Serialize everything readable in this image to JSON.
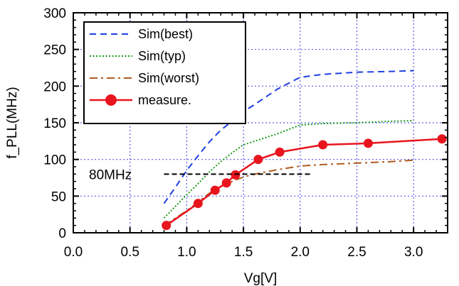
{
  "chart_data": {
    "type": "line",
    "xlabel": "Vg[V]",
    "ylabel": "f_PLL(MHz)",
    "xlim": [
      0.0,
      3.3
    ],
    "ylim": [
      0,
      300
    ],
    "xticks": [
      "0.0",
      "0.5",
      "1.0",
      "1.5",
      "2.0",
      "2.5",
      "3.0"
    ],
    "xtick_values": [
      0.0,
      0.5,
      1.0,
      1.5,
      2.0,
      2.5,
      3.0
    ],
    "yticks": [
      "0",
      "50",
      "100",
      "150",
      "200",
      "250",
      "300"
    ],
    "ytick_values": [
      0,
      50,
      100,
      150,
      200,
      250,
      300
    ],
    "grid": true,
    "legend_position": "top-left",
    "series": [
      {
        "name": "Sim(best)",
        "style": "dashed",
        "color": "#1f3fe0",
        "x": [
          0.8,
          0.9,
          1.0,
          1.1,
          1.2,
          1.3,
          1.4,
          1.5,
          1.6,
          1.8,
          2.0,
          2.2,
          2.5,
          2.8,
          3.0
        ],
        "y": [
          40,
          62,
          85,
          105,
          124,
          140,
          152,
          165,
          175,
          196,
          212,
          216,
          219,
          220,
          221
        ]
      },
      {
        "name": "Sim(typ)",
        "style": "dotted",
        "color": "#1a9a1a",
        "x": [
          0.8,
          0.9,
          1.0,
          1.1,
          1.2,
          1.3,
          1.4,
          1.5,
          1.6,
          1.8,
          2.0,
          2.2,
          2.5,
          2.8,
          3.0
        ],
        "y": [
          20,
          36,
          52,
          67,
          83,
          97,
          109,
          120,
          125,
          135,
          147,
          149,
          150,
          152,
          153
        ]
      },
      {
        "name": "Sim(worst)",
        "style": "dashdot",
        "color": "#b05a1e",
        "x": [
          0.8,
          0.9,
          1.0,
          1.1,
          1.2,
          1.3,
          1.4,
          1.5,
          1.6,
          1.8,
          2.0,
          2.2,
          2.5,
          2.8,
          3.0
        ],
        "y": [
          10,
          20,
          30,
          42,
          54,
          63,
          70,
          76,
          80,
          86,
          91,
          93,
          95,
          97,
          99
        ]
      },
      {
        "name": "measure.",
        "style": "solid-marker",
        "color": "#e8141e",
        "x": [
          0.82,
          1.1,
          1.25,
          1.35,
          1.43,
          1.63,
          1.82,
          2.2,
          2.6,
          3.25
        ],
        "y": [
          10,
          40,
          58,
          68,
          79,
          100,
          110,
          120,
          122,
          128
        ]
      }
    ],
    "annotations": [
      {
        "text": "80MHz",
        "line_x": [
          0.8,
          2.1
        ],
        "line_y": 80,
        "style": "dashed",
        "color": "#000000"
      }
    ]
  }
}
